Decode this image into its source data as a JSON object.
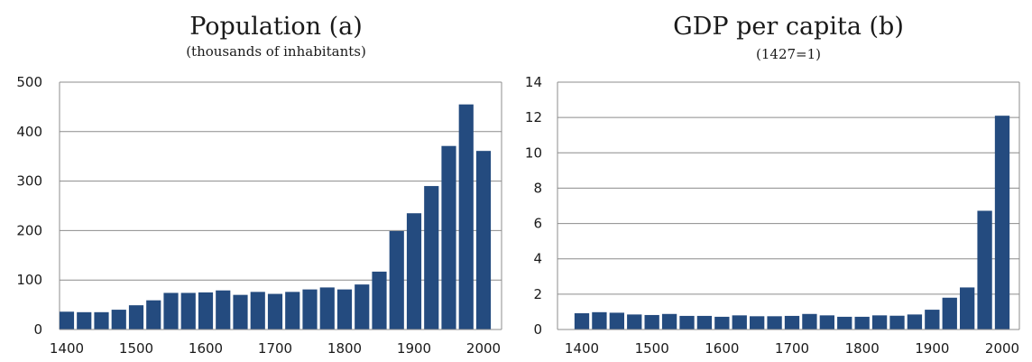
{
  "chart_data": [
    {
      "type": "bar",
      "title": "Population (a)",
      "subtitle": "(thousands of inhabitants)",
      "x": [
        1400,
        1425,
        1450,
        1475,
        1500,
        1525,
        1550,
        1575,
        1600,
        1625,
        1650,
        1675,
        1700,
        1725,
        1750,
        1775,
        1800,
        1825,
        1850,
        1875,
        1900,
        1925,
        1950,
        1975,
        2000
      ],
      "values": [
        36,
        35,
        35,
        40,
        49,
        59,
        74,
        74,
        75,
        79,
        70,
        76,
        72,
        76,
        81,
        85,
        81,
        91,
        117,
        199,
        235,
        290,
        371,
        455,
        361
      ],
      "ylim": [
        0,
        500
      ],
      "yticks": [
        "0",
        "100",
        "200",
        "300",
        "400",
        "500"
      ],
      "xticks": [
        "1400",
        "1500",
        "1600",
        "1700",
        "1800",
        "1900",
        "2000"
      ],
      "grid": true,
      "bar_color": "#244b7f"
    },
    {
      "type": "bar",
      "title": "GDP per capita (b)",
      "subtitle": "(1427=1)",
      "x": [
        1400,
        1425,
        1450,
        1475,
        1500,
        1525,
        1550,
        1575,
        1600,
        1625,
        1650,
        1675,
        1700,
        1725,
        1750,
        1775,
        1800,
        1825,
        1850,
        1875,
        1900,
        1925,
        1950,
        1975,
        2000
      ],
      "values": [
        0.92,
        0.98,
        0.95,
        0.85,
        0.82,
        0.88,
        0.77,
        0.77,
        0.72,
        0.8,
        0.75,
        0.75,
        0.77,
        0.88,
        0.8,
        0.72,
        0.72,
        0.8,
        0.78,
        0.85,
        1.12,
        1.8,
        2.38,
        6.72,
        12.1
      ],
      "ylim": [
        0,
        14
      ],
      "yticks": [
        "0",
        "2",
        "4",
        "6",
        "8",
        "10",
        "12",
        "14"
      ],
      "xticks": [
        "1400",
        "1500",
        "1600",
        "1700",
        "1800",
        "1900",
        "2000"
      ],
      "grid": true,
      "bar_color": "#244b7f"
    }
  ]
}
